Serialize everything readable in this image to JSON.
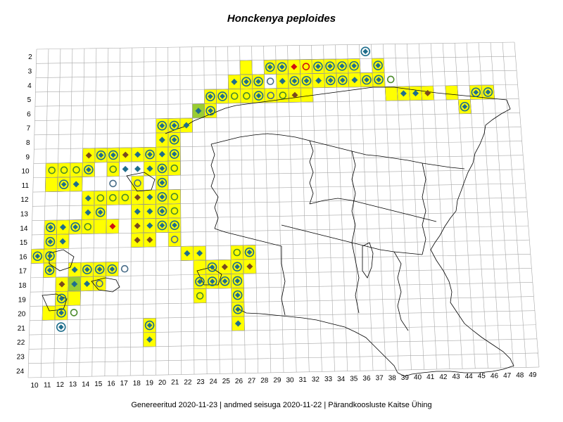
{
  "title": "Honckenya peploides",
  "footer": "Genereeritud 2020-11-23  |  andmed seisuga 2020-11-22  |  Pärandkoosluste Kaitse Ühing",
  "chart_data": {
    "type": "grid-distribution-map",
    "x_ticks": [
      "10",
      "11",
      "12",
      "13",
      "14",
      "15",
      "16",
      "17",
      "18",
      "19",
      "20",
      "21",
      "22",
      "23",
      "24",
      "25",
      "26",
      "27",
      "28",
      "29",
      "30",
      "31",
      "32",
      "33",
      "34",
      "35",
      "36",
      "37",
      "38",
      "39",
      "40",
      "41",
      "42",
      "43",
      "44",
      "45",
      "46",
      "47",
      "48",
      "49"
    ],
    "y_ticks": [
      "2",
      "3",
      "4",
      "5",
      "6",
      "7",
      "8",
      "9",
      "10",
      "11",
      "12",
      "13",
      "14",
      "15",
      "16",
      "17",
      "18",
      "19",
      "20",
      "21",
      "22",
      "23",
      "24"
    ],
    "colors": {
      "grid": "#a8a8a8",
      "cell_fill": "#ffff00",
      "cell_alt_fill": "#9acd32",
      "cell_stroke": "#555555",
      "border": "#000000",
      "diamond": "#1f6e8c",
      "circle": "#1f6e8c",
      "open_circle_dark": "#4a6e8a",
      "open_circle_yellow": "#4a8a2a",
      "diamond_brown": "#7a4a1e",
      "diamond_red": "#d01010"
    },
    "cells": [
      [
        27,
        3
      ],
      [
        29,
        3
      ],
      [
        30,
        3
      ],
      [
        31,
        3
      ],
      [
        32,
        3
      ],
      [
        33,
        3
      ],
      [
        34,
        3
      ],
      [
        35,
        3
      ],
      [
        36,
        3
      ],
      [
        38,
        3
      ],
      [
        26,
        4
      ],
      [
        27,
        4
      ],
      [
        28,
        4
      ],
      [
        30,
        4
      ],
      [
        31,
        4
      ],
      [
        32,
        4
      ],
      [
        33,
        4
      ],
      [
        34,
        4
      ],
      [
        35,
        4
      ],
      [
        36,
        4
      ],
      [
        37,
        4
      ],
      [
        38,
        4
      ],
      [
        24,
        5
      ],
      [
        25,
        5
      ],
      [
        26,
        5
      ],
      [
        27,
        5
      ],
      [
        28,
        5
      ],
      [
        29,
        5
      ],
      [
        30,
        5
      ],
      [
        31,
        5
      ],
      [
        32,
        5
      ],
      [
        39,
        5
      ],
      [
        40,
        5
      ],
      [
        41,
        5
      ],
      [
        42,
        5
      ],
      [
        44,
        5
      ],
      [
        46,
        5
      ],
      [
        47,
        5
      ],
      [
        23,
        6
      ],
      [
        24,
        6
      ],
      [
        45,
        6
      ],
      [
        20,
        7
      ],
      [
        21,
        7
      ],
      [
        22,
        7
      ],
      [
        20,
        8
      ],
      [
        21,
        8
      ],
      [
        14,
        9
      ],
      [
        15,
        9
      ],
      [
        16,
        9
      ],
      [
        17,
        9
      ],
      [
        18,
        9
      ],
      [
        19,
        9
      ],
      [
        20,
        9
      ],
      [
        21,
        9
      ],
      [
        11,
        10
      ],
      [
        12,
        10
      ],
      [
        13,
        10
      ],
      [
        14,
        10
      ],
      [
        16,
        10
      ],
      [
        19,
        10
      ],
      [
        20,
        10
      ],
      [
        21,
        10
      ],
      [
        11,
        11
      ],
      [
        12,
        11
      ],
      [
        13,
        11
      ],
      [
        18,
        11
      ],
      [
        20,
        11
      ],
      [
        14,
        12
      ],
      [
        15,
        12
      ],
      [
        16,
        12
      ],
      [
        17,
        12
      ],
      [
        18,
        12
      ],
      [
        19,
        12
      ],
      [
        20,
        12
      ],
      [
        21,
        12
      ],
      [
        14,
        13
      ],
      [
        15,
        13
      ],
      [
        18,
        13
      ],
      [
        19,
        13
      ],
      [
        20,
        13
      ],
      [
        21,
        13
      ],
      [
        11,
        14
      ],
      [
        12,
        14
      ],
      [
        13,
        14
      ],
      [
        14,
        14
      ],
      [
        15,
        14
      ],
      [
        16,
        14
      ],
      [
        18,
        14
      ],
      [
        19,
        14
      ],
      [
        20,
        14
      ],
      [
        21,
        14
      ],
      [
        11,
        15
      ],
      [
        12,
        15
      ],
      [
        18,
        15
      ],
      [
        19,
        15
      ],
      [
        21,
        15
      ],
      [
        10,
        16
      ],
      [
        11,
        16
      ],
      [
        22,
        16
      ],
      [
        23,
        16
      ],
      [
        26,
        16
      ],
      [
        27,
        16
      ],
      [
        11,
        17
      ],
      [
        13,
        17
      ],
      [
        14,
        17
      ],
      [
        15,
        17
      ],
      [
        16,
        17
      ],
      [
        23,
        17
      ],
      [
        24,
        17
      ],
      [
        25,
        17
      ],
      [
        26,
        17
      ],
      [
        27,
        17
      ],
      [
        12,
        18
      ],
      [
        13,
        18
      ],
      [
        14,
        18
      ],
      [
        15,
        18
      ],
      [
        23,
        18
      ],
      [
        24,
        18
      ],
      [
        25,
        18
      ],
      [
        26,
        18
      ],
      [
        12,
        19
      ],
      [
        13,
        19
      ],
      [
        23,
        19
      ],
      [
        26,
        19
      ],
      [
        11,
        20
      ],
      [
        12,
        20
      ],
      [
        26,
        20
      ],
      [
        26,
        21
      ],
      [
        19,
        21
      ],
      [
        19,
        22
      ]
    ],
    "alt_cells": [
      [
        23,
        6
      ],
      [
        13,
        18
      ]
    ],
    "markers": [
      {
        "x": 37,
        "y": 2,
        "t": "dc"
      },
      {
        "x": 29,
        "y": 3,
        "t": "dc"
      },
      {
        "x": 30,
        "y": 3,
        "t": "dc"
      },
      {
        "x": 31,
        "y": 3,
        "t": "dr"
      },
      {
        "x": 32,
        "y": 3,
        "t": "cr"
      },
      {
        "x": 33,
        "y": 3,
        "t": "dc"
      },
      {
        "x": 34,
        "y": 3,
        "t": "dc"
      },
      {
        "x": 35,
        "y": 3,
        "t": "dc"
      },
      {
        "x": 36,
        "y": 3,
        "t": "dc"
      },
      {
        "x": 38,
        "y": 3,
        "t": "dc"
      },
      {
        "x": 26,
        "y": 4,
        "t": "d"
      },
      {
        "x": 27,
        "y": 4,
        "t": "dc"
      },
      {
        "x": 28,
        "y": 4,
        "t": "dc"
      },
      {
        "x": 29,
        "y": 4,
        "t": "o"
      },
      {
        "x": 30,
        "y": 4,
        "t": "d"
      },
      {
        "x": 31,
        "y": 4,
        "t": "dc"
      },
      {
        "x": 32,
        "y": 4,
        "t": "dc"
      },
      {
        "x": 33,
        "y": 4,
        "t": "d"
      },
      {
        "x": 34,
        "y": 4,
        "t": "dc"
      },
      {
        "x": 35,
        "y": 4,
        "t": "dc"
      },
      {
        "x": 36,
        "y": 4,
        "t": "d"
      },
      {
        "x": 37,
        "y": 4,
        "t": "dc"
      },
      {
        "x": 38,
        "y": 4,
        "t": "dc"
      },
      {
        "x": 39,
        "y": 4,
        "t": "oy"
      },
      {
        "x": 24,
        "y": 5,
        "t": "dc"
      },
      {
        "x": 25,
        "y": 5,
        "t": "dc"
      },
      {
        "x": 26,
        "y": 5,
        "t": "oy"
      },
      {
        "x": 27,
        "y": 5,
        "t": "oy"
      },
      {
        "x": 28,
        "y": 5,
        "t": "dc"
      },
      {
        "x": 29,
        "y": 5,
        "t": "o"
      },
      {
        "x": 30,
        "y": 5,
        "t": "oy"
      },
      {
        "x": 31,
        "y": 5,
        "t": "db"
      },
      {
        "x": 40,
        "y": 5,
        "t": "d"
      },
      {
        "x": 41,
        "y": 5,
        "t": "d"
      },
      {
        "x": 42,
        "y": 5,
        "t": "db"
      },
      {
        "x": 46,
        "y": 5,
        "t": "dc"
      },
      {
        "x": 47,
        "y": 5,
        "t": "dc"
      },
      {
        "x": 23,
        "y": 6,
        "t": "d"
      },
      {
        "x": 24,
        "y": 6,
        "t": "dc"
      },
      {
        "x": 45,
        "y": 6,
        "t": "dc"
      },
      {
        "x": 20,
        "y": 7,
        "t": "dc"
      },
      {
        "x": 21,
        "y": 7,
        "t": "dc"
      },
      {
        "x": 22,
        "y": 7,
        "t": "d"
      },
      {
        "x": 20,
        "y": 8,
        "t": "d"
      },
      {
        "x": 21,
        "y": 8,
        "t": "dc"
      },
      {
        "x": 14,
        "y": 9,
        "t": "db"
      },
      {
        "x": 15,
        "y": 9,
        "t": "dc"
      },
      {
        "x": 16,
        "y": 9,
        "t": "dc"
      },
      {
        "x": 17,
        "y": 9,
        "t": "db"
      },
      {
        "x": 18,
        "y": 9,
        "t": "d"
      },
      {
        "x": 19,
        "y": 9,
        "t": "dc"
      },
      {
        "x": 20,
        "y": 9,
        "t": "d"
      },
      {
        "x": 21,
        "y": 9,
        "t": "dc"
      },
      {
        "x": 11,
        "y": 10,
        "t": "oy"
      },
      {
        "x": 12,
        "y": 10,
        "t": "oy"
      },
      {
        "x": 13,
        "y": 10,
        "t": "oy"
      },
      {
        "x": 14,
        "y": 10,
        "t": "dc"
      },
      {
        "x": 16,
        "y": 10,
        "t": "oy"
      },
      {
        "x": 17,
        "y": 10,
        "t": "d"
      },
      {
        "x": 18,
        "y": 10,
        "t": "d"
      },
      {
        "x": 19,
        "y": 10,
        "t": "d"
      },
      {
        "x": 20,
        "y": 10,
        "t": "dc"
      },
      {
        "x": 21,
        "y": 10,
        "t": "oy"
      },
      {
        "x": 12,
        "y": 11,
        "t": "dc"
      },
      {
        "x": 13,
        "y": 11,
        "t": "d"
      },
      {
        "x": 16,
        "y": 11,
        "t": "o"
      },
      {
        "x": 18,
        "y": 11,
        "t": "o"
      },
      {
        "x": 20,
        "y": 11,
        "t": "dc"
      },
      {
        "x": 14,
        "y": 12,
        "t": "d"
      },
      {
        "x": 15,
        "y": 12,
        "t": "oy"
      },
      {
        "x": 16,
        "y": 12,
        "t": "oy"
      },
      {
        "x": 17,
        "y": 12,
        "t": "oy"
      },
      {
        "x": 18,
        "y": 12,
        "t": "db"
      },
      {
        "x": 19,
        "y": 12,
        "t": "d"
      },
      {
        "x": 20,
        "y": 12,
        "t": "dc"
      },
      {
        "x": 21,
        "y": 12,
        "t": "oy"
      },
      {
        "x": 14,
        "y": 13,
        "t": "d"
      },
      {
        "x": 15,
        "y": 13,
        "t": "dc"
      },
      {
        "x": 18,
        "y": 13,
        "t": "d"
      },
      {
        "x": 19,
        "y": 13,
        "t": "d"
      },
      {
        "x": 20,
        "y": 13,
        "t": "dc"
      },
      {
        "x": 21,
        "y": 13,
        "t": "oy"
      },
      {
        "x": 11,
        "y": 14,
        "t": "dc"
      },
      {
        "x": 12,
        "y": 14,
        "t": "d"
      },
      {
        "x": 13,
        "y": 14,
        "t": "dc"
      },
      {
        "x": 14,
        "y": 14,
        "t": "oy"
      },
      {
        "x": 16,
        "y": 14,
        "t": "dr"
      },
      {
        "x": 18,
        "y": 14,
        "t": "db"
      },
      {
        "x": 19,
        "y": 14,
        "t": "d"
      },
      {
        "x": 20,
        "y": 14,
        "t": "dc"
      },
      {
        "x": 21,
        "y": 14,
        "t": "dc"
      },
      {
        "x": 11,
        "y": 15,
        "t": "dc"
      },
      {
        "x": 12,
        "y": 15,
        "t": "d"
      },
      {
        "x": 18,
        "y": 15,
        "t": "db"
      },
      {
        "x": 19,
        "y": 15,
        "t": "db"
      },
      {
        "x": 21,
        "y": 15,
        "t": "o"
      },
      {
        "x": 10,
        "y": 16,
        "t": "dc"
      },
      {
        "x": 11,
        "y": 16,
        "t": "dc"
      },
      {
        "x": 22,
        "y": 16,
        "t": "d"
      },
      {
        "x": 23,
        "y": 16,
        "t": "d"
      },
      {
        "x": 26,
        "y": 16,
        "t": "oy"
      },
      {
        "x": 27,
        "y": 16,
        "t": "dc"
      },
      {
        "x": 11,
        "y": 17,
        "t": "dc"
      },
      {
        "x": 13,
        "y": 17,
        "t": "d"
      },
      {
        "x": 14,
        "y": 17,
        "t": "dc"
      },
      {
        "x": 15,
        "y": 17,
        "t": "dc"
      },
      {
        "x": 16,
        "y": 17,
        "t": "dc"
      },
      {
        "x": 17,
        "y": 17,
        "t": "o"
      },
      {
        "x": 24,
        "y": 17,
        "t": "dc"
      },
      {
        "x": 25,
        "y": 17,
        "t": "db"
      },
      {
        "x": 26,
        "y": 17,
        "t": "dc"
      },
      {
        "x": 27,
        "y": 17,
        "t": "db"
      },
      {
        "x": 12,
        "y": 18,
        "t": "db"
      },
      {
        "x": 13,
        "y": 18,
        "t": "d"
      },
      {
        "x": 14,
        "y": 18,
        "t": "d"
      },
      {
        "x": 15,
        "y": 18,
        "t": "o"
      },
      {
        "x": 23,
        "y": 18,
        "t": "dc"
      },
      {
        "x": 24,
        "y": 18,
        "t": "dc"
      },
      {
        "x": 25,
        "y": 18,
        "t": "dc"
      },
      {
        "x": 26,
        "y": 18,
        "t": "dc"
      },
      {
        "x": 12,
        "y": 19,
        "t": "dc"
      },
      {
        "x": 23,
        "y": 19,
        "t": "oy"
      },
      {
        "x": 26,
        "y": 19,
        "t": "dc"
      },
      {
        "x": 12,
        "y": 20,
        "t": "dc"
      },
      {
        "x": 13,
        "y": 20,
        "t": "oy"
      },
      {
        "x": 26,
        "y": 20,
        "t": "dc"
      },
      {
        "x": 12,
        "y": 21,
        "t": "dc"
      },
      {
        "x": 19,
        "y": 21,
        "t": "dc"
      },
      {
        "x": 26,
        "y": 21,
        "t": "d"
      },
      {
        "x": 19,
        "y": 22,
        "t": "d"
      }
    ]
  }
}
